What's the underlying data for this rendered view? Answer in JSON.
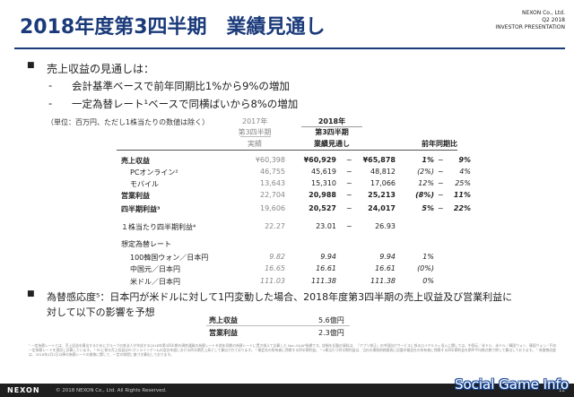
{
  "header": {
    "title": "2018年度第3四半期　業績見通し",
    "company": "NEXON Co., Ltd.",
    "quarter": "Q2 2018",
    "doc": "INVESTOR PRESENTATION"
  },
  "bullets": {
    "b1": "売上収益の見通しは：",
    "b1_sub1": "会計基準ベースで前年同期比1%から9%の増加",
    "b1_sub2": "一定為替レート¹ベースで同横ばいから8%の増加",
    "b2": "為替感応度⁵：日本円が米ドルに対して1円変動した場合、2018年度第3四半期の売上収益及び営業利益に",
    "b2_cont": "対して以下の影響を予想"
  },
  "table": {
    "unit_note": "（単位：百万円、ただし1株当たりの数値は除く）",
    "headers": {
      "prev_year": "2017年",
      "prev_q": "第3四半期",
      "prev_type": "実績",
      "cur_year": "2018年",
      "cur_q": "第3四半期",
      "cur_type": "業績見通し",
      "yoy": "前年同期比"
    },
    "rows": [
      {
        "label": "売上収益",
        "prev": "¥60,398",
        "low": "¥60,929",
        "tilde": "~",
        "high": "¥65,878",
        "pct_low": "1%",
        "tilde2": "~",
        "pct_high": "9%"
      },
      {
        "label": "PCオンライン²",
        "prev": "46,755",
        "low": "45,619",
        "tilde": "~",
        "high": "48,812",
        "pct_low": "(2%)",
        "tilde2": "~",
        "pct_high": "4%"
      },
      {
        "label": "モバイル",
        "prev": "13,643",
        "low": "15,310",
        "tilde": "~",
        "high": "17,066",
        "pct_low": "12%",
        "tilde2": "~",
        "pct_high": "25%"
      },
      {
        "label": "営業利益",
        "prev": "22,704",
        "low": "20,988",
        "tilde": "~",
        "high": "25,213",
        "pct_low": "(8%)",
        "tilde2": "~",
        "pct_high": "11%"
      },
      {
        "label": "四半期利益³",
        "prev": "19,606",
        "low": "20,527",
        "tilde": "~",
        "high": "24,017",
        "pct_low": "5%",
        "tilde2": "~",
        "pct_high": "22%"
      },
      {
        "label": "１株当たり四半期利益⁴",
        "prev": "22.27",
        "low": "23.01",
        "tilde": "~",
        "high": "26.93",
        "pct_low": "",
        "tilde2": "",
        "pct_high": ""
      }
    ],
    "fx_title": "想定為替レート",
    "fx_rows": [
      {
        "label": "100韓国ウォン／日本円",
        "prev": "9.82",
        "low": "9.94",
        "high": "9.94",
        "pct": "1%"
      },
      {
        "label": "中国元／日本円",
        "prev": "16.65",
        "low": "16.61",
        "high": "16.61",
        "pct": "(0%)"
      },
      {
        "label": "米ドル／日本円",
        "prev": "111.03",
        "low": "111.38",
        "high": "111.38",
        "pct": "0%"
      }
    ]
  },
  "sensitivity": {
    "rev_label": "売上収益",
    "rev_value": "5.6億円",
    "op_label": "営業利益",
    "op_value": "2.3億円"
  },
  "footnotes": "¹ 一定為替レートとは、売上収益を算出するためにグループの各法人が作成する2018年第3四半期の現地通貨の為替レートを前年同期の為替レートに置き換えて計算した Non-GAAP指標です。詳細を記載の資料は、『アプリ修正』の中国向けサービスに係るロイヤルティ収入に関しては、中国元／米ドル、米ドル／韓国ウォン、韓国ウォン／円の一定為替レートを適用し計算しています。 ² PCに係る売上収益はPCオンラインゲームの会計年度における四半期売上高として算出されております。 ³ 親会社の所有者に帰属する四半期利益。 ⁴ 1株当たり四半期利益は、当社の連結財務諸表に記載の親会社の所有者に帰属する四半期利益を期中平均株式数で除して算出しております。 ⁵ 為替感応度は、2018年4月1日以降の為替レートの推移に関して、一定の前提に基づき算出しております。",
  "footer": {
    "logo": "NEXON",
    "copyright": "© 2018 NEXON Co., Ltd. All Rights Reserved.",
    "watermark": "Social Game Info",
    "page": "12"
  }
}
